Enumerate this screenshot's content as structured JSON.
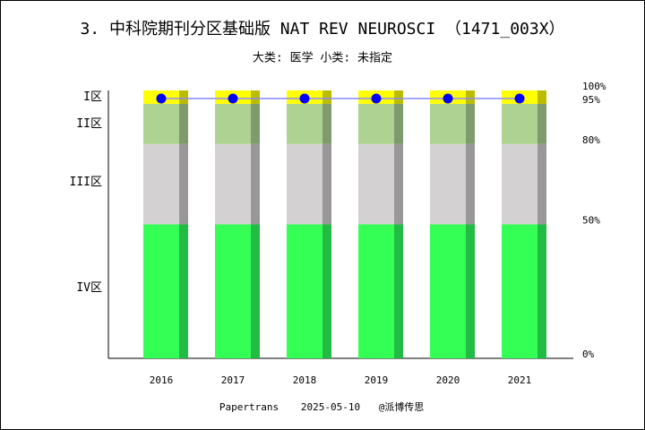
{
  "chart_data": {
    "type": "zone_bar",
    "title": "3. 中科院期刊分区基础版 NAT REV NEUROSCI （1471_003X）",
    "subtitle": "大类: 医学 小类: 未指定",
    "footer": [
      "Papertrans",
      "2025-05-10",
      "@派博传思"
    ],
    "categories": [
      "2016",
      "2017",
      "2018",
      "2019",
      "2020",
      "2021"
    ],
    "series": [
      {
        "name": "IV区",
        "color": "#33ff55",
        "side_color": "#22bb44",
        "values": [
          50,
          50,
          50,
          50,
          50,
          50
        ]
      },
      {
        "name": "III区",
        "color": "#d3d1d2",
        "side_color": "#999797",
        "values": [
          30,
          30,
          30,
          30,
          30,
          30
        ]
      },
      {
        "name": "II区",
        "color": "#aed291",
        "side_color": "#7f9a6c",
        "values": [
          15,
          15,
          15,
          15,
          15,
          15
        ]
      },
      {
        "name": "I区",
        "color": "#ffff00",
        "side_color": "#bbbb00",
        "values": [
          5,
          5,
          5,
          5,
          5,
          5
        ]
      }
    ],
    "rank": {
      "color": "#0000ff",
      "line_color": "#8888ff",
      "values": [
        97,
        97,
        97,
        97,
        97,
        97
      ]
    },
    "ylim": [
      0,
      100
    ],
    "yticks": [
      {
        "value": 0,
        "label": "0%"
      },
      {
        "value": 50,
        "label": "50%"
      },
      {
        "value": 80,
        "label": "80%"
      },
      {
        "value": 95,
        "label": "95%"
      },
      {
        "value": 100,
        "label": "100%"
      }
    ]
  }
}
